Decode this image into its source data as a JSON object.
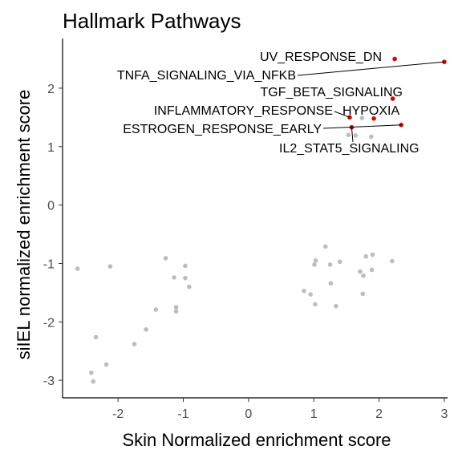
{
  "chart_data": {
    "type": "scatter",
    "title": "Hallmark Pathways",
    "xlabel": "Skin Normalized enrichment score",
    "ylabel": "siIEL normalized enrichment score",
    "xlim": [
      -2.85,
      3.05
    ],
    "ylim": [
      -3.3,
      2.85
    ],
    "xticks": [
      -2,
      -1,
      0,
      1,
      2,
      3
    ],
    "yticks": [
      -3,
      -2,
      -1,
      0,
      1,
      2
    ],
    "grid": false,
    "colors": {
      "background": "#bdbdbd",
      "highlight": "#e00000"
    },
    "background_points": [
      {
        "x": -2.62,
        "y": -1.09
      },
      {
        "x": -2.12,
        "y": -1.05
      },
      {
        "x": -1.27,
        "y": -0.91
      },
      {
        "x": -0.97,
        "y": -1.04
      },
      {
        "x": -1.14,
        "y": -1.24
      },
      {
        "x": -0.97,
        "y": -1.25
      },
      {
        "x": -0.91,
        "y": -1.4
      },
      {
        "x": -1.42,
        "y": -1.79
      },
      {
        "x": -1.11,
        "y": -1.75
      },
      {
        "x": -1.11,
        "y": -1.82
      },
      {
        "x": -1.57,
        "y": -2.13
      },
      {
        "x": -1.75,
        "y": -2.38
      },
      {
        "x": -2.34,
        "y": -2.26
      },
      {
        "x": -2.18,
        "y": -2.73
      },
      {
        "x": -2.41,
        "y": -2.87
      },
      {
        "x": -2.38,
        "y": -3.02
      },
      {
        "x": 1.18,
        "y": -0.71
      },
      {
        "x": 1.03,
        "y": -0.95
      },
      {
        "x": 1.01,
        "y": -1.02
      },
      {
        "x": 1.25,
        "y": -1.02
      },
      {
        "x": 1.4,
        "y": -0.97
      },
      {
        "x": 1.8,
        "y": -0.88
      },
      {
        "x": 1.9,
        "y": -0.85
      },
      {
        "x": 2.2,
        "y": -0.96
      },
      {
        "x": 1.89,
        "y": -1.11
      },
      {
        "x": 1.71,
        "y": -1.14
      },
      {
        "x": 1.76,
        "y": -1.21
      },
      {
        "x": 1.26,
        "y": -1.34
      },
      {
        "x": 0.85,
        "y": -1.47
      },
      {
        "x": 0.95,
        "y": -1.53
      },
      {
        "x": 1.75,
        "y": -1.52
      },
      {
        "x": 1.02,
        "y": -1.7
      },
      {
        "x": 1.34,
        "y": -1.73
      },
      {
        "x": 1.74,
        "y": 1.49
      },
      {
        "x": 1.53,
        "y": 1.2
      },
      {
        "x": 1.64,
        "y": 1.19
      },
      {
        "x": 1.88,
        "y": 1.17
      }
    ],
    "highlighted_points": [
      {
        "label": "UV_RESPONSE_DN",
        "x": 2.24,
        "y": 2.5
      },
      {
        "label": "TNFA_SIGNALING_VIA_NFKB",
        "x": 3.0,
        "y": 2.45
      },
      {
        "label": "TGF_BETA_SIGNALING",
        "x": 2.21,
        "y": 1.82
      },
      {
        "label": "INFLAMMATORY_RESPONSE",
        "x": 1.55,
        "y": 1.5
      },
      {
        "label": "HYPOXIA",
        "x": 1.92,
        "y": 1.48
      },
      {
        "label": "ESTROGEN_RESPONSE_EARLY",
        "x": 2.34,
        "y": 1.37
      },
      {
        "label": "IL2_STAT5_SIGNALING",
        "x": 1.58,
        "y": 1.33
      }
    ]
  }
}
